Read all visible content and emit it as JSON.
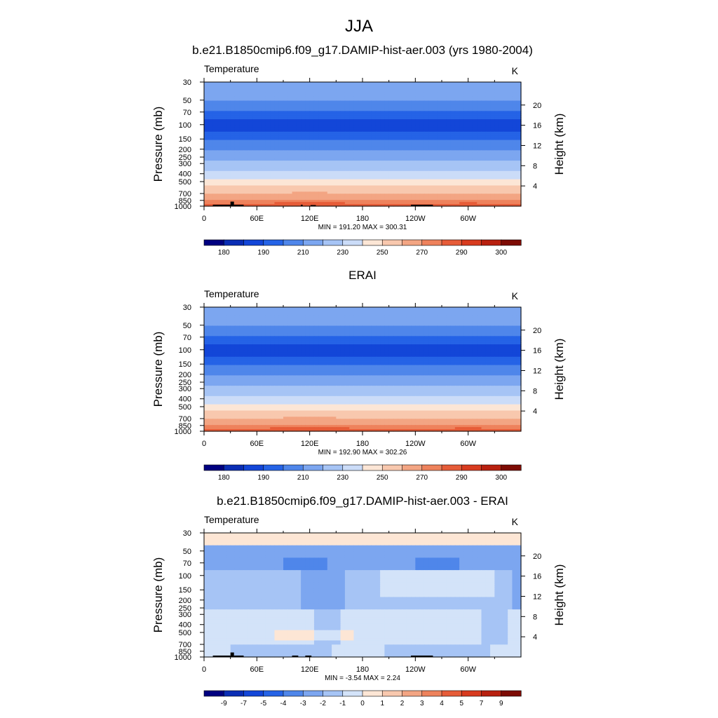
{
  "figure": {
    "title": "JJA"
  },
  "colors": {
    "abs": [
      "#000080",
      "#0a2db4",
      "#1346d8",
      "#2563e6",
      "#4f86ea",
      "#7ca6f0",
      "#a6c4f5",
      "#cbdcf8",
      "#fce6d6",
      "#f8c8ae",
      "#f3a583",
      "#ee825c",
      "#e65c38",
      "#d83b1f",
      "#b8200f",
      "#7d0b04"
    ],
    "diff": [
      "#000080",
      "#0a2db4",
      "#1346d8",
      "#2563e6",
      "#4f86ea",
      "#7ca6f0",
      "#a6c4f5",
      "#d3e3f9",
      "#fde6d5",
      "#f8c8ae",
      "#f3a583",
      "#ee825c",
      "#e65c38",
      "#d83b1f",
      "#b8200f",
      "#7d0b04"
    ],
    "land": "#000000"
  },
  "chart_data": [
    {
      "type": "heatmap",
      "id": "model",
      "title": "b.e21.B1850cmip6.f09_g17.DAMIP-hist-aer.003 (yrs 1980-2004)",
      "left_label": "Temperature",
      "units": "K",
      "ylabel": "Pressure (mb)",
      "ylabel_right": "Height (km)",
      "x_ticks": [
        "0",
        "60E",
        "120E",
        "180",
        "120W",
        "60W"
      ],
      "x_tick_lon": [
        0,
        60,
        120,
        180,
        240,
        300
      ],
      "xlim": [
        0,
        360
      ],
      "p_ticks": [
        "30",
        "50",
        "70",
        "100",
        "150",
        "200",
        "250",
        "300",
        "400",
        "500",
        "700",
        "850",
        "1000"
      ],
      "p_values": [
        30,
        50,
        70,
        100,
        150,
        200,
        250,
        300,
        400,
        500,
        700,
        850,
        1000
      ],
      "plim": [
        1000,
        30
      ],
      "km_ticks": [
        "20",
        "16",
        "12",
        "8",
        "4"
      ],
      "km_values": [
        20,
        16,
        12,
        8,
        4
      ],
      "stats": "MIN = 191.20  MAX = 300.31",
      "cb_labels": [
        "180",
        "190",
        "210",
        "230",
        "250",
        "270",
        "290",
        "300"
      ],
      "kind": "abs",
      "profile_p": [
        30,
        50,
        70,
        85,
        100,
        120,
        150,
        200,
        250,
        300,
        400,
        500,
        600,
        700,
        850,
        925,
        1000
      ],
      "profile_T": [
        227,
        220,
        210,
        200,
        197,
        200,
        210,
        219,
        226,
        232,
        242,
        253,
        263,
        270,
        280,
        284,
        288
      ],
      "surface_mask": [
        [
          10,
          30,
          960
        ],
        [
          30,
          34,
          880
        ],
        [
          34,
          45,
          960
        ],
        [
          110,
          112,
          960
        ],
        [
          121,
          127,
          970
        ],
        [
          235,
          260,
          960
        ]
      ]
    },
    {
      "type": "heatmap",
      "id": "erai",
      "title": "ERAI",
      "left_label": "Temperature",
      "units": "K",
      "ylabel": "Pressure (mb)",
      "ylabel_right": "Height (km)",
      "x_ticks": [
        "0",
        "60E",
        "120E",
        "180",
        "120W",
        "60W"
      ],
      "x_tick_lon": [
        0,
        60,
        120,
        180,
        240,
        300
      ],
      "xlim": [
        0,
        360
      ],
      "p_ticks": [
        "30",
        "50",
        "70",
        "100",
        "150",
        "200",
        "250",
        "300",
        "400",
        "500",
        "700",
        "850",
        "1000"
      ],
      "p_values": [
        30,
        50,
        70,
        100,
        150,
        200,
        250,
        300,
        400,
        500,
        700,
        850,
        1000
      ],
      "plim": [
        1000,
        30
      ],
      "km_ticks": [
        "20",
        "16",
        "12",
        "8",
        "4"
      ],
      "km_values": [
        20,
        16,
        12,
        8,
        4
      ],
      "stats": "MIN = 192.90  MAX = 302.26",
      "cb_labels": [
        "180",
        "190",
        "210",
        "230",
        "250",
        "270",
        "290",
        "300"
      ],
      "kind": "abs",
      "profile_p": [
        30,
        50,
        70,
        85,
        100,
        120,
        150,
        200,
        250,
        300,
        400,
        500,
        600,
        700,
        850,
        925,
        1000
      ],
      "profile_T": [
        227,
        220,
        210,
        200,
        197,
        200,
        210,
        219,
        226,
        232,
        242,
        253,
        263,
        270,
        280,
        284,
        288
      ],
      "surface_mask": []
    },
    {
      "type": "heatmap",
      "id": "diff",
      "title": "b.e21.B1850cmip6.f09_g17.DAMIP-hist-aer.003 - ERAI",
      "left_label": "Temperature",
      "units": "K",
      "ylabel": "Pressure (mb)",
      "ylabel_right": "Height (km)",
      "x_ticks": [
        "0",
        "60E",
        "120E",
        "180",
        "120W",
        "60W"
      ],
      "x_tick_lon": [
        0,
        60,
        120,
        180,
        240,
        300
      ],
      "xlim": [
        0,
        360
      ],
      "p_ticks": [
        "30",
        "50",
        "70",
        "100",
        "150",
        "200",
        "250",
        "300",
        "400",
        "500",
        "700",
        "850",
        "1000"
      ],
      "p_values": [
        30,
        50,
        70,
        100,
        150,
        200,
        250,
        300,
        400,
        500,
        700,
        850,
        1000
      ],
      "plim": [
        1000,
        30
      ],
      "km_ticks": [
        "20",
        "16",
        "12",
        "8",
        "4"
      ],
      "km_values": [
        20,
        16,
        12,
        8,
        4
      ],
      "stats": "MIN = -3.54  MAX =  2.24",
      "cb_labels": [
        "-9",
        "-7",
        "-5",
        "-4",
        "-3",
        "-2",
        "-1",
        "0",
        "1",
        "2",
        "3",
        "4",
        "5",
        "7",
        "9"
      ],
      "kind": "diff",
      "surface_mask": [
        [
          10,
          30,
          960
        ],
        [
          30,
          34,
          880
        ],
        [
          34,
          45,
          960
        ],
        [
          100,
          107,
          960
        ],
        [
          115,
          122,
          960
        ],
        [
          235,
          260,
          960
        ]
      ]
    }
  ]
}
